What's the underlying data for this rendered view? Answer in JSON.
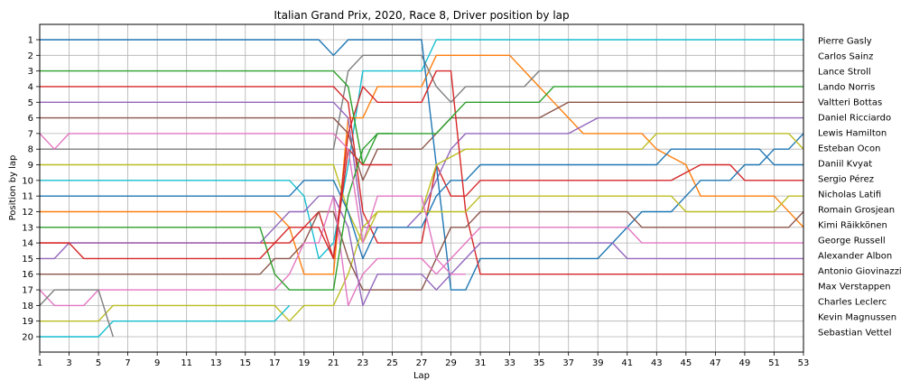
{
  "chart_data": {
    "type": "line",
    "title": "Italian Grand Prix, 2020, Race 8, Driver position by lap",
    "xlabel": "Lap",
    "ylabel": "Position by lap",
    "xlim": [
      1,
      53
    ],
    "ylim": [
      20,
      1
    ],
    "x_ticks": [
      1,
      3,
      5,
      7,
      9,
      11,
      13,
      15,
      17,
      19,
      21,
      23,
      25,
      27,
      29,
      31,
      33,
      35,
      37,
      39,
      41,
      43,
      45,
      47,
      49,
      51,
      53
    ],
    "y_ticks": [
      1,
      2,
      3,
      4,
      5,
      6,
      7,
      8,
      9,
      10,
      11,
      12,
      13,
      14,
      15,
      16,
      17,
      18,
      19,
      20
    ],
    "grid": true,
    "legend": "right, driver names listed at their final positions",
    "series": [
      {
        "name": "Pierre Gasly",
        "color": "#17becf",
        "points": [
          [
            1,
            10
          ],
          [
            18,
            10
          ],
          [
            19,
            11
          ],
          [
            20,
            15
          ],
          [
            21,
            14
          ],
          [
            22,
            9
          ],
          [
            23,
            3
          ],
          [
            27,
            3
          ],
          [
            28,
            1
          ],
          [
            53,
            1
          ]
        ]
      },
      {
        "name": "Carlos Sainz",
        "color": "#ff7f0e",
        "points": [
          [
            1,
            12
          ],
          [
            17,
            12
          ],
          [
            18,
            13
          ],
          [
            19,
            16
          ],
          [
            21,
            16
          ],
          [
            22,
            6
          ],
          [
            23,
            6
          ],
          [
            24,
            4
          ],
          [
            27,
            4
          ],
          [
            28,
            2
          ],
          [
            33,
            2
          ],
          [
            34,
            3
          ],
          [
            36,
            5
          ],
          [
            38,
            7
          ],
          [
            42,
            7
          ],
          [
            43,
            8
          ],
          [
            45,
            9
          ],
          [
            46,
            11
          ],
          [
            51,
            11
          ],
          [
            53,
            13
          ]
        ]
      },
      {
        "name": "Lance Stroll",
        "color": "#7f7f7f",
        "points": [
          [
            1,
            8
          ],
          [
            21,
            8
          ],
          [
            22,
            3
          ],
          [
            23,
            2
          ],
          [
            27,
            2
          ],
          [
            28,
            4
          ],
          [
            29,
            5
          ],
          [
            30,
            4
          ],
          [
            34,
            4
          ],
          [
            35,
            3
          ],
          [
            53,
            3
          ]
        ]
      },
      {
        "name": "Lando Norris",
        "color": "#d62728",
        "points": [
          [
            1,
            4
          ],
          [
            21,
            4
          ],
          [
            22,
            5
          ],
          [
            23,
            12
          ],
          [
            24,
            14
          ],
          [
            27,
            14
          ],
          [
            28,
            9
          ],
          [
            29,
            11
          ],
          [
            30,
            11
          ],
          [
            31,
            10
          ],
          [
            44,
            10
          ],
          [
            46,
            9
          ],
          [
            48,
            9
          ],
          [
            49,
            10
          ],
          [
            53,
            10
          ]
        ]
      },
      {
        "name": "Valtteri Bottas",
        "color": "#9467bd",
        "points": [
          [
            1,
            5
          ],
          [
            21,
            5
          ],
          [
            22,
            6
          ],
          [
            23,
            13
          ],
          [
            26,
            13
          ],
          [
            27,
            12
          ],
          [
            29,
            8
          ],
          [
            30,
            7
          ],
          [
            37,
            7
          ],
          [
            39,
            6
          ],
          [
            53,
            6
          ]
        ]
      },
      {
        "name": "Daniel Ricciardo",
        "color": "#8c564b",
        "points": [
          [
            1,
            6
          ],
          [
            21,
            6
          ],
          [
            22,
            7
          ],
          [
            23,
            10
          ],
          [
            24,
            8
          ],
          [
            27,
            8
          ],
          [
            28,
            7
          ],
          [
            29,
            6
          ],
          [
            35,
            6
          ],
          [
            37,
            5
          ],
          [
            53,
            5
          ]
        ]
      },
      {
        "name": "Lewis Hamilton",
        "color": "#1f77b4",
        "points": [
          [
            1,
            1
          ],
          [
            20,
            1
          ],
          [
            21,
            2
          ],
          [
            22,
            1
          ],
          [
            27,
            1
          ],
          [
            29,
            17
          ],
          [
            30,
            17
          ],
          [
            31,
            15
          ],
          [
            39,
            15
          ],
          [
            42,
            12
          ],
          [
            44,
            12
          ],
          [
            46,
            10
          ],
          [
            48,
            10
          ],
          [
            49,
            9
          ],
          [
            50,
            9
          ],
          [
            51,
            8
          ],
          [
            52,
            8
          ],
          [
            53,
            7
          ]
        ]
      },
      {
        "name": "Esteban Ocon",
        "color": "#bcbd22",
        "points": [
          [
            1,
            9
          ],
          [
            21,
            9
          ],
          [
            22,
            12
          ],
          [
            23,
            14
          ],
          [
            24,
            12
          ],
          [
            27,
            12
          ],
          [
            28,
            9
          ],
          [
            30,
            8
          ],
          [
            42,
            8
          ],
          [
            43,
            7
          ],
          [
            52,
            7
          ],
          [
            53,
            8
          ]
        ]
      },
      {
        "name": "Daniil Kvyat",
        "color": "#1f77b4",
        "points": [
          [
            1,
            11
          ],
          [
            18,
            11
          ],
          [
            19,
            10
          ],
          [
            21,
            10
          ],
          [
            22,
            12
          ],
          [
            23,
            15
          ],
          [
            24,
            13
          ],
          [
            27,
            13
          ],
          [
            28,
            11
          ],
          [
            29,
            10
          ],
          [
            30,
            10
          ],
          [
            31,
            9
          ],
          [
            43,
            9
          ],
          [
            44,
            8
          ],
          [
            50,
            8
          ],
          [
            51,
            9
          ],
          [
            53,
            9
          ]
        ]
      },
      {
        "name": "Sergio Pérez",
        "color": "#d62728",
        "points": [
          [
            1,
            14
          ],
          [
            17,
            14
          ],
          [
            18,
            13
          ],
          [
            19,
            13
          ],
          [
            20,
            12
          ],
          [
            21,
            15
          ],
          [
            22,
            7
          ],
          [
            23,
            4
          ],
          [
            24,
            5
          ],
          [
            27,
            5
          ],
          [
            28,
            3
          ],
          [
            29,
            3
          ],
          [
            30,
            12
          ],
          [
            31,
            16
          ],
          [
            53,
            16
          ]
        ]
      },
      {
        "name": "Nicholas Latifi",
        "color": "#bcbd22",
        "points": [
          [
            1,
            19
          ],
          [
            5,
            19
          ],
          [
            6,
            18
          ],
          [
            17,
            18
          ],
          [
            18,
            19
          ],
          [
            19,
            18
          ],
          [
            21,
            18
          ],
          [
            22,
            16
          ],
          [
            23,
            13
          ],
          [
            24,
            12
          ],
          [
            29,
            12
          ],
          [
            30,
            12
          ],
          [
            31,
            11
          ],
          [
            44,
            11
          ],
          [
            45,
            12
          ],
          [
            51,
            12
          ],
          [
            52,
            11
          ],
          [
            53,
            11
          ]
        ]
      },
      {
        "name": "Romain Grosjean",
        "color": "#8c564b",
        "points": [
          [
            1,
            16
          ],
          [
            16,
            16
          ],
          [
            17,
            15
          ],
          [
            18,
            15
          ],
          [
            19,
            14
          ],
          [
            20,
            12
          ],
          [
            21,
            12
          ],
          [
            22,
            15
          ],
          [
            23,
            17
          ],
          [
            27,
            17
          ],
          [
            29,
            13
          ],
          [
            30,
            13
          ],
          [
            31,
            12
          ],
          [
            41,
            12
          ],
          [
            42,
            13
          ],
          [
            52,
            13
          ],
          [
            53,
            12
          ]
        ]
      },
      {
        "name": "Kimi Räikkönen",
        "color": "#e377c2",
        "points": [
          [
            1,
            17
          ],
          [
            2,
            18
          ],
          [
            4,
            18
          ],
          [
            5,
            17
          ],
          [
            17,
            17
          ],
          [
            18,
            16
          ],
          [
            19,
            14
          ],
          [
            20,
            14
          ],
          [
            21,
            11
          ],
          [
            22,
            18
          ],
          [
            23,
            16
          ],
          [
            24,
            15
          ],
          [
            27,
            15
          ],
          [
            28,
            16
          ],
          [
            29,
            15
          ],
          [
            30,
            14
          ],
          [
            31,
            13
          ],
          [
            41,
            13
          ],
          [
            42,
            14
          ],
          [
            53,
            14
          ]
        ]
      },
      {
        "name": "George Russell",
        "color": "#9467bd",
        "points": [
          [
            1,
            15
          ],
          [
            2,
            15
          ],
          [
            3,
            14
          ],
          [
            16,
            14
          ],
          [
            17,
            13
          ],
          [
            18,
            12
          ],
          [
            19,
            12
          ],
          [
            20,
            11
          ],
          [
            21,
            11
          ],
          [
            22,
            13
          ],
          [
            23,
            18
          ],
          [
            24,
            16
          ],
          [
            27,
            16
          ],
          [
            28,
            17
          ],
          [
            29,
            16
          ],
          [
            30,
            15
          ],
          [
            31,
            14
          ],
          [
            40,
            14
          ],
          [
            41,
            15
          ],
          [
            53,
            15
          ]
        ]
      },
      {
        "name": "Alexander Albon",
        "color": "#2ca02c",
        "points": [
          [
            1,
            3
          ],
          [
            21,
            3
          ],
          [
            22,
            4
          ],
          [
            23,
            9
          ],
          [
            24,
            7
          ],
          [
            28,
            7
          ],
          [
            29,
            6
          ],
          [
            30,
            5
          ],
          [
            35,
            5
          ],
          [
            36,
            4
          ],
          [
            53,
            4
          ]
        ]
      },
      {
        "name": "Antonio Giovinazzi",
        "color": "#2ca02c",
        "points": [
          [
            1,
            13
          ],
          [
            16,
            13
          ],
          [
            17,
            16
          ],
          [
            18,
            17
          ],
          [
            21,
            17
          ],
          [
            22,
            11
          ],
          [
            23,
            8
          ],
          [
            24,
            7
          ],
          [
            25,
            7
          ]
        ]
      },
      {
        "name": "Max Verstappen",
        "color": "#d62728",
        "points": [
          [
            1,
            14
          ],
          [
            2,
            14
          ],
          [
            3,
            14
          ],
          [
            4,
            15
          ],
          [
            16,
            15
          ],
          [
            17,
            14
          ],
          [
            18,
            14
          ],
          [
            19,
            13
          ],
          [
            20,
            13
          ],
          [
            21,
            15
          ],
          [
            22,
            8
          ],
          [
            23,
            9
          ],
          [
            24,
            9
          ],
          [
            25,
            9
          ]
        ]
      },
      {
        "name": "Charles Leclerc",
        "color": "#e377c2",
        "points": [
          [
            1,
            7
          ],
          [
            2,
            8
          ],
          [
            3,
            7
          ],
          [
            21,
            7
          ],
          [
            22,
            8
          ],
          [
            23,
            14
          ],
          [
            24,
            11
          ],
          [
            26,
            11
          ],
          [
            27,
            11
          ],
          [
            28,
            15
          ],
          [
            29,
            16
          ],
          [
            30,
            16
          ]
        ]
      },
      {
        "name": "Kevin Magnussen",
        "color": "#17becf",
        "points": [
          [
            1,
            20
          ],
          [
            5,
            20
          ],
          [
            6,
            19
          ],
          [
            17,
            19
          ],
          [
            18,
            18
          ]
        ]
      },
      {
        "name": "Sebastian Vettel",
        "color": "#7f7f7f",
        "points": [
          [
            1,
            18
          ],
          [
            2,
            17
          ],
          [
            5,
            17
          ],
          [
            6,
            20
          ]
        ]
      }
    ],
    "right_labels": [
      "Pierre Gasly",
      "Carlos Sainz",
      "Lance Stroll",
      "Lando Norris",
      "Valtteri Bottas",
      "Daniel Ricciardo",
      "Lewis Hamilton",
      "Esteban Ocon",
      "Daniil Kvyat",
      "Sergio Pérez",
      "Nicholas Latifi",
      "Romain Grosjean",
      "Kimi Räikkönen",
      "George Russell",
      "Alexander Albon",
      "Antonio Giovinazzi",
      "Max Verstappen",
      "Charles Leclerc",
      "Kevin Magnussen",
      "Sebastian Vettel"
    ]
  }
}
